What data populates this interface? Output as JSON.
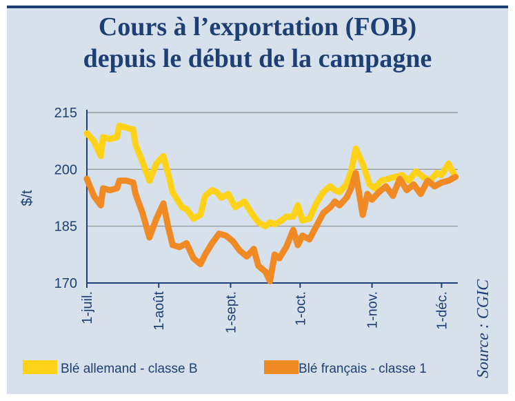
{
  "title_line1": "Cours à l’exportation (FOB)",
  "title_line2": "depuis le début de la campagne",
  "source": "Source : CGIC",
  "colors": {
    "title": "#1d3f73",
    "background": "#d7e1ec",
    "series1": "#ffd21a",
    "series2": "#f08a24",
    "grid": "#8c8c8c"
  },
  "chart_data": {
    "type": "line",
    "ylabel": "$/t",
    "xlabel": "",
    "ylim": [
      170,
      215
    ],
    "yticks": [
      170,
      185,
      200,
      215
    ],
    "xlim": [
      "1-juil.",
      "8-déc."
    ],
    "xticks": [
      {
        "date": "2010-07-01",
        "label": "1-juil."
      },
      {
        "date": "2010-08-01",
        "label": "1-août"
      },
      {
        "date": "2010-09-01",
        "label": "1-sept."
      },
      {
        "date": "2010-10-01",
        "label": "1-oct."
      },
      {
        "date": "2010-11-01",
        "label": "1-nov."
      },
      {
        "date": "2010-12-01",
        "label": "1-déc."
      }
    ],
    "grid": true,
    "legend": "bottom",
    "series": [
      {
        "name": "Blé allemand - classe B",
        "color": "#ffd21a",
        "x": [
          "2010-07-01",
          "2010-07-04",
          "2010-07-07",
          "2010-07-08",
          "2010-07-11",
          "2010-07-14",
          "2010-07-15",
          "2010-07-18",
          "2010-07-21",
          "2010-07-22",
          "2010-07-25",
          "2010-07-28",
          "2010-07-31",
          "2010-08-03",
          "2010-08-05",
          "2010-08-07",
          "2010-08-09",
          "2010-08-11",
          "2010-08-13",
          "2010-08-16",
          "2010-08-19",
          "2010-08-21",
          "2010-08-24",
          "2010-08-26",
          "2010-08-28",
          "2010-08-31",
          "2010-09-03",
          "2010-09-07",
          "2010-09-10",
          "2010-09-13",
          "2010-09-16",
          "2010-09-18",
          "2010-09-20",
          "2010-09-23",
          "2010-09-25",
          "2010-09-28",
          "2010-09-30",
          "2010-10-02",
          "2010-10-05",
          "2010-10-08",
          "2010-10-11",
          "2010-10-14",
          "2010-10-16",
          "2010-10-18",
          "2010-10-21",
          "2010-10-23",
          "2010-10-25",
          "2010-10-28",
          "2010-10-31",
          "2010-11-02",
          "2010-11-05",
          "2010-11-08",
          "2010-11-11",
          "2010-11-14",
          "2010-11-17",
          "2010-11-20",
          "2010-11-23",
          "2010-11-26",
          "2010-11-29",
          "2010-12-01",
          "2010-12-04",
          "2010-12-07"
        ],
        "values": [
          209.5,
          207.5,
          203.5,
          208.5,
          208.0,
          208.5,
          211.5,
          211.0,
          210.5,
          206.5,
          202.0,
          197.0,
          201.5,
          203.5,
          199.0,
          194.0,
          192.0,
          190.0,
          189.5,
          187.0,
          188.0,
          193.0,
          194.5,
          194.0,
          192.5,
          193.5,
          190.0,
          191.5,
          188.5,
          186.0,
          185.0,
          186.0,
          185.5,
          186.5,
          187.5,
          187.5,
          190.5,
          186.5,
          187.0,
          191.0,
          194.0,
          195.5,
          194.5,
          194.0,
          196.0,
          199.5,
          205.5,
          201.5,
          196.0,
          195.0,
          197.0,
          197.5,
          198.0,
          198.5,
          197.0,
          199.5,
          198.0,
          197.0,
          199.0,
          198.5,
          201.5,
          198.0
        ]
      },
      {
        "name": "Blé français - classe 1",
        "color": "#f08a24",
        "x": [
          "2010-07-01",
          "2010-07-04",
          "2010-07-07",
          "2010-07-08",
          "2010-07-11",
          "2010-07-14",
          "2010-07-15",
          "2010-07-18",
          "2010-07-21",
          "2010-07-22",
          "2010-07-25",
          "2010-07-28",
          "2010-07-31",
          "2010-08-03",
          "2010-08-05",
          "2010-08-07",
          "2010-08-10",
          "2010-08-13",
          "2010-08-16",
          "2010-08-19",
          "2010-08-21",
          "2010-08-24",
          "2010-08-27",
          "2010-08-30",
          "2010-09-02",
          "2010-09-05",
          "2010-09-08",
          "2010-09-11",
          "2010-09-13",
          "2010-09-16",
          "2010-09-18",
          "2010-09-20",
          "2010-09-22",
          "2010-09-25",
          "2010-09-28",
          "2010-09-30",
          "2010-10-02",
          "2010-10-05",
          "2010-10-08",
          "2010-10-11",
          "2010-10-14",
          "2010-10-16",
          "2010-10-18",
          "2010-10-21",
          "2010-10-23",
          "2010-10-25",
          "2010-10-28",
          "2010-10-30",
          "2010-11-01",
          "2010-11-04",
          "2010-11-07",
          "2010-11-10",
          "2010-11-13",
          "2010-11-16",
          "2010-11-19",
          "2010-11-22",
          "2010-11-25",
          "2010-11-28",
          "2010-12-01",
          "2010-12-04",
          "2010-12-07"
        ],
        "values": [
          197.5,
          193.0,
          190.5,
          195.0,
          194.5,
          195.0,
          197.0,
          197.0,
          196.5,
          193.5,
          188.5,
          182.0,
          187.0,
          191.0,
          185.0,
          180.0,
          179.5,
          180.5,
          176.5,
          175.0,
          177.5,
          180.5,
          183.0,
          182.5,
          181.0,
          178.5,
          177.0,
          179.0,
          174.5,
          173.0,
          170.5,
          177.5,
          176.5,
          179.5,
          184.0,
          180.0,
          182.5,
          181.5,
          185.0,
          188.5,
          190.0,
          191.5,
          190.5,
          192.5,
          195.0,
          199.0,
          188.0,
          193.5,
          192.0,
          194.0,
          195.5,
          193.0,
          197.5,
          194.5,
          196.0,
          193.5,
          197.0,
          195.5,
          196.5,
          197.0,
          198.0
        ]
      }
    ]
  }
}
